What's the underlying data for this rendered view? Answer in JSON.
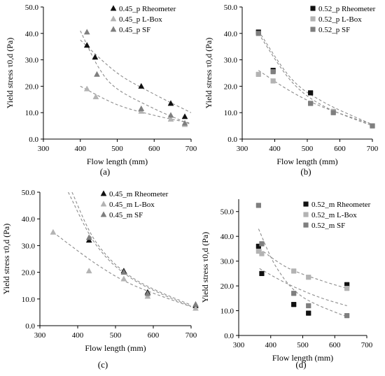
{
  "palette": {
    "black": "#111111",
    "light_gray": "#b3b3b3",
    "mid_gray": "#7f7f7f",
    "fit_line": "#8c8c8c",
    "axis": "#000000"
  },
  "chart_data": [
    {
      "id": "a",
      "type": "scatter",
      "panel_label": "(a)",
      "xlabel": "Flow length (mm)",
      "ylabel": "Yield stress τ0,d (Pa)",
      "xlim": [
        300,
        700
      ],
      "ylim": [
        0,
        50
      ],
      "xticks": [
        "300",
        "400",
        "500",
        "600",
        "700"
      ],
      "yticks": [
        "0.0",
        "10.0",
        "20.0",
        "30.0",
        "40.0",
        "50.0"
      ],
      "legend_position": "top-right",
      "series": [
        {
          "name": "0.45_p Rheometer",
          "marker": "triangle",
          "color": "#111111",
          "x": [
            418,
            440,
            565,
            645,
            683
          ],
          "y": [
            35.5,
            31.0,
            20.0,
            13.5,
            8.5
          ],
          "fit": [
            [
              400,
              37.5
            ],
            [
              500,
              25.0
            ],
            [
              600,
              17.0
            ],
            [
              700,
              10.0
            ]
          ]
        },
        {
          "name": "0.45_p L-Box",
          "marker": "triangle",
          "color": "#b3b3b3",
          "x": [
            418,
            442,
            565,
            645,
            683
          ],
          "y": [
            19.0,
            16.0,
            10.5,
            7.5,
            5.5
          ],
          "fit": [
            [
              400,
              20.0
            ],
            [
              500,
              13.0
            ],
            [
              600,
              9.0
            ],
            [
              700,
              6.0
            ]
          ]
        },
        {
          "name": "0.45_p SF",
          "marker": "triangle",
          "color": "#7f7f7f",
          "x": [
            418,
            445,
            565,
            645,
            683
          ],
          "y": [
            40.5,
            24.5,
            11.5,
            9.0,
            6.0
          ],
          "fit": [
            [
              400,
              41.0
            ],
            [
              450,
              27.0
            ],
            [
              500,
              19.0
            ],
            [
              600,
              11.5
            ],
            [
              700,
              5.5
            ]
          ]
        }
      ]
    },
    {
      "id": "b",
      "type": "scatter",
      "panel_label": "(b)",
      "xlabel": "Flow length (mm)",
      "ylabel": "Yield stress τ0,d (Pa)",
      "xlim": [
        300,
        700
      ],
      "ylim": [
        0,
        50
      ],
      "xticks": [
        "300",
        "400",
        "500",
        "600",
        "700"
      ],
      "yticks": [
        "0.0",
        "10.0",
        "20.0",
        "30.0",
        "40.0",
        "50.0"
      ],
      "legend_position": "top-right",
      "series": [
        {
          "name": "0.52_p Rheometer",
          "marker": "square",
          "color": "#111111",
          "x": [
            350,
            395,
            510
          ],
          "y": [
            40.5,
            26.0,
            17.5
          ],
          "fit": [
            [
              350,
              41.0
            ],
            [
              450,
              23.0
            ],
            [
              550,
              14.0
            ],
            [
              700,
              5.5
            ]
          ]
        },
        {
          "name": "0.52_p L-Box",
          "marker": "square",
          "color": "#b3b3b3",
          "x": [
            350,
            395,
            510,
            580,
            700
          ],
          "y": [
            24.5,
            22.0,
            13.5,
            10.5,
            5.0
          ],
          "fit": [
            [
              350,
              26.0
            ],
            [
              450,
              18.0
            ],
            [
              550,
              12.0
            ],
            [
              700,
              5.5
            ]
          ]
        },
        {
          "name": "0.52_p SF",
          "marker": "square",
          "color": "#7f7f7f",
          "x": [
            350,
            395,
            510,
            580,
            700
          ],
          "y": [
            40.0,
            25.5,
            13.5,
            10.0,
            5.0
          ],
          "fit": [
            [
              350,
              40.0
            ],
            [
              450,
              22.0
            ],
            [
              550,
              12.5
            ],
            [
              700,
              5.0
            ]
          ]
        }
      ]
    },
    {
      "id": "c",
      "type": "scatter",
      "panel_label": "(c)",
      "xlabel": "Flow length (mm)",
      "ylabel": "Yield stress τ0,d (Pa)",
      "xlim": [
        300,
        700
      ],
      "ylim": [
        0,
        50
      ],
      "xticks": [
        "300",
        "400",
        "500",
        "600",
        "700"
      ],
      "yticks": [
        "0.0",
        "10.0",
        "20.0",
        "30.0",
        "40.0",
        "50.0"
      ],
      "legend_position": "top-right",
      "series": [
        {
          "name": "0.45_m Rheometer",
          "marker": "triangle",
          "color": "#111111",
          "x": [
            430,
            522,
            585,
            712
          ],
          "y": [
            32.0,
            20.5,
            12.5,
            7.5
          ],
          "fit": [
            [
              375,
              50.0
            ],
            [
              450,
              30.0
            ],
            [
              550,
              17.0
            ],
            [
              712,
              6.5
            ]
          ]
        },
        {
          "name": "0.45_m L-Box",
          "marker": "triangle",
          "color": "#b3b3b3",
          "x": [
            335,
            430,
            522,
            585,
            712
          ],
          "y": [
            35.0,
            20.5,
            17.5,
            11.0,
            6.5
          ],
          "fit": [
            [
              335,
              35.0
            ],
            [
              450,
              23.0
            ],
            [
              550,
              15.0
            ],
            [
              712,
              6.5
            ]
          ]
        },
        {
          "name": "0.45_m SF",
          "marker": "triangle",
          "color": "#7f7f7f",
          "x": [
            430,
            522,
            585,
            712
          ],
          "y": [
            33.0,
            20.0,
            12.0,
            8.0
          ],
          "fit": [
            [
              385,
              50.0
            ],
            [
              450,
              31.0
            ],
            [
              550,
              17.5
            ],
            [
              712,
              7.0
            ]
          ]
        }
      ]
    },
    {
      "id": "d",
      "type": "scatter",
      "panel_label": "(d)",
      "xlabel": "Flow length (mm)",
      "ylabel": "Yield stress τ0,d (Pa)",
      "xlim": [
        300,
        700
      ],
      "ylim": [
        0,
        55
      ],
      "xticks": [
        "300",
        "400",
        "500",
        "600",
        "700"
      ],
      "yticks": [
        "0.0",
        "10.0",
        "20.0",
        "30.0",
        "40.0",
        "50.0"
      ],
      "legend_position": "top-right",
      "series": [
        {
          "name": "0.52_m Rheometer",
          "marker": "square",
          "color": "#111111",
          "x": [
            362,
            372,
            472,
            518,
            638
          ],
          "y": [
            36.0,
            25.0,
            12.5,
            9.0,
            20.5
          ],
          "fit": [
            [
              365,
              27.0
            ],
            [
              450,
              21.0
            ],
            [
              550,
              15.5
            ],
            [
              638,
              12.0
            ]
          ]
        },
        {
          "name": "0.52_m L-Box",
          "marker": "square",
          "color": "#b3b3b3",
          "x": [
            362,
            372,
            472,
            518,
            638
          ],
          "y": [
            34.0,
            33.0,
            26.0,
            23.5,
            19.0
          ],
          "fit": [
            [
              365,
              35.0
            ],
            [
              450,
              27.5
            ],
            [
              550,
              22.5
            ],
            [
              638,
              19.0
            ]
          ]
        },
        {
          "name": "0.52_m SF",
          "marker": "square",
          "color": "#7f7f7f",
          "x": [
            362,
            372,
            472,
            518,
            638
          ],
          "y": [
            52.5,
            37.0,
            17.0,
            12.0,
            8.0
          ],
          "fit": [
            [
              362,
              43.0
            ],
            [
              420,
              27.0
            ],
            [
              500,
              15.5
            ],
            [
              638,
              7.5
            ]
          ]
        }
      ]
    }
  ]
}
